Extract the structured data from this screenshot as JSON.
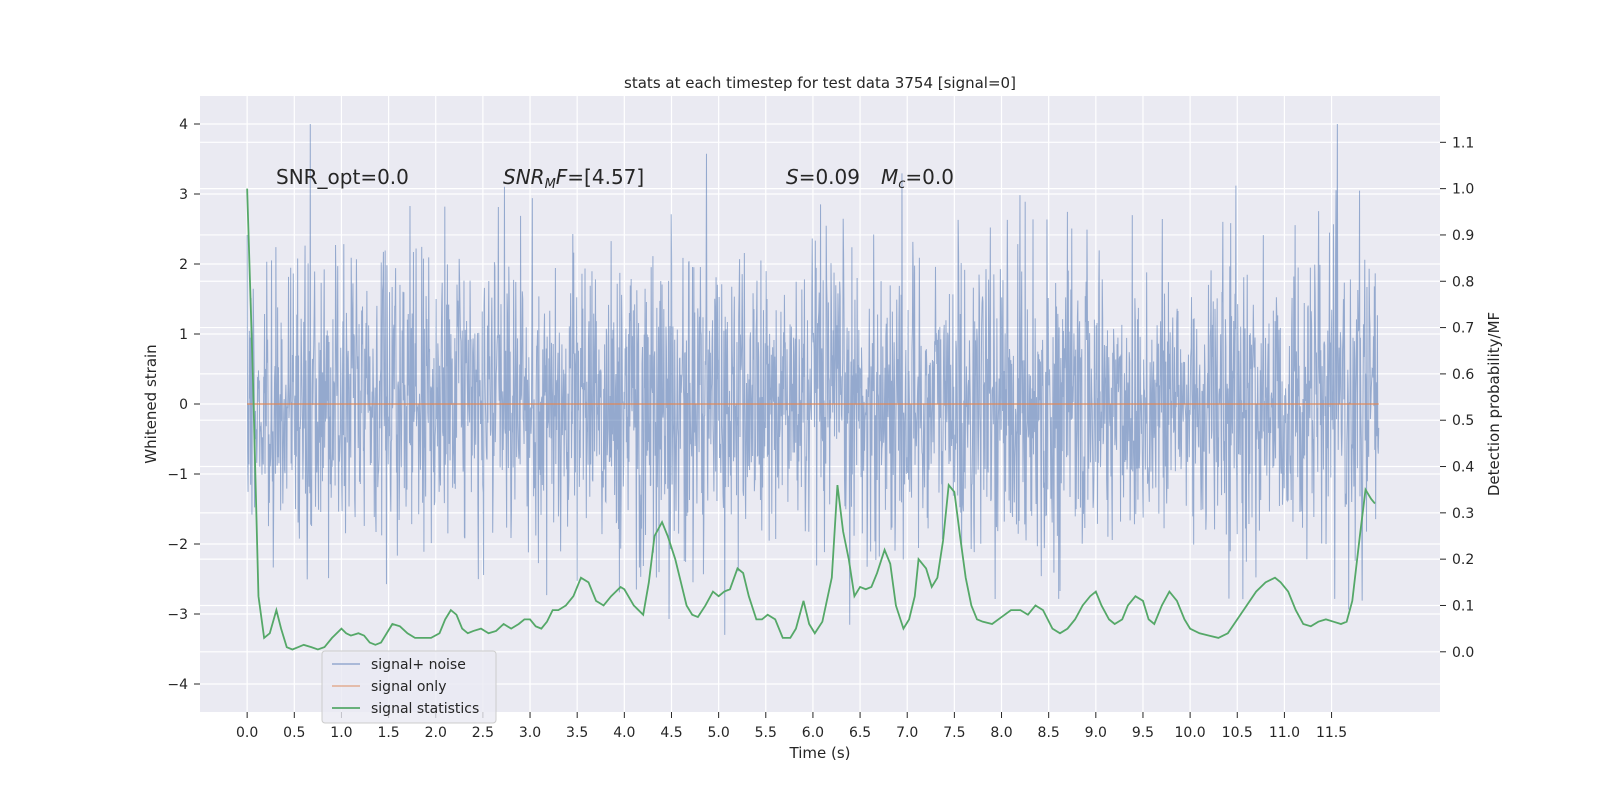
{
  "chart_data": {
    "type": "line",
    "title": "stats at each timestep for test data 3754 [signal=0]",
    "xlabel": "Time (s)",
    "ylabel": "Whitened strain",
    "y2label": "Detection probability/MF",
    "xlim": [
      -0.5,
      12.65
    ],
    "ylim": [
      -4.4,
      4.4
    ],
    "y2lim": [
      -0.13,
      1.2
    ],
    "xticks": [
      "0.0",
      "0.5",
      "1.0",
      "1.5",
      "2.0",
      "2.5",
      "3.0",
      "3.5",
      "4.0",
      "4.5",
      "5.0",
      "5.5",
      "6.0",
      "6.5",
      "7.0",
      "7.5",
      "8.0",
      "8.5",
      "9.0",
      "9.5",
      "10.0",
      "10.5",
      "11.0",
      "11.5"
    ],
    "yticks": [
      "4",
      "3",
      "2",
      "1",
      "0",
      "−1",
      "−2",
      "−3",
      "−4"
    ],
    "y2ticks": [
      "1.1",
      "1.0",
      "0.9",
      "0.8",
      "0.7",
      "0.6",
      "0.5",
      "0.4",
      "0.3",
      "0.2",
      "0.1",
      "0.0"
    ],
    "grid": true,
    "legend_placement": "lower-left",
    "annotations": [
      {
        "id": "snr-opt",
        "text": "SNR_opt=0.0"
      },
      {
        "id": "snr-mf",
        "base": "SNR",
        "sub": "M",
        "rest": "F=[4.57]"
      },
      {
        "id": "s-val",
        "base": "S",
        "rest": "=0.09"
      },
      {
        "id": "mc-val",
        "base": "M",
        "sub": "c",
        "rest": "=0.0"
      }
    ],
    "series": [
      {
        "name": "signal+ noise",
        "color": "#4c72b0",
        "kind": "noise",
        "t_start": 0.0,
        "t_end": 12.0,
        "envelope_approx": [
          -4.1,
          4.0
        ]
      },
      {
        "name": "signal only",
        "color": "#dd8452",
        "kind": "flat",
        "value": 0.0
      },
      {
        "name": "signal statistics",
        "color": "#55a868",
        "axis": "right",
        "x": [
          0.0,
          0.06,
          0.12,
          0.18,
          0.24,
          0.31,
          0.36,
          0.42,
          0.48,
          0.54,
          0.6,
          0.68,
          0.75,
          0.82,
          0.9,
          1.0,
          1.05,
          1.1,
          1.18,
          1.24,
          1.3,
          1.36,
          1.42,
          1.48,
          1.54,
          1.62,
          1.7,
          1.78,
          1.86,
          1.95,
          2.04,
          2.1,
          2.16,
          2.22,
          2.28,
          2.34,
          2.4,
          2.48,
          2.56,
          2.64,
          2.72,
          2.8,
          2.88,
          2.94,
          3.0,
          3.06,
          3.12,
          3.18,
          3.24,
          3.3,
          3.38,
          3.46,
          3.54,
          3.62,
          3.7,
          3.78,
          3.86,
          3.96,
          4.0,
          4.1,
          4.2,
          4.26,
          4.32,
          4.4,
          4.46,
          4.54,
          4.6,
          4.66,
          4.72,
          4.78,
          4.86,
          4.94,
          5.0,
          5.06,
          5.12,
          5.2,
          5.26,
          5.32,
          5.4,
          5.46,
          5.52,
          5.6,
          5.68,
          5.76,
          5.82,
          5.9,
          5.96,
          6.02,
          6.1,
          6.2,
          6.26,
          6.32,
          6.38,
          6.44,
          6.5,
          6.56,
          6.62,
          6.68,
          6.76,
          6.82,
          6.88,
          6.96,
          7.02,
          7.08,
          7.12,
          7.2,
          7.26,
          7.32,
          7.38,
          7.44,
          7.5,
          7.56,
          7.62,
          7.68,
          7.74,
          7.8,
          7.9,
          8.0,
          8.1,
          8.2,
          8.28,
          8.36,
          8.44,
          8.54,
          8.62,
          8.7,
          8.78,
          8.86,
          8.94,
          9.0,
          9.06,
          9.14,
          9.2,
          9.28,
          9.34,
          9.42,
          9.5,
          9.56,
          9.62,
          9.7,
          9.78,
          9.86,
          9.94,
          10.0,
          10.1,
          10.2,
          10.3,
          10.4,
          10.5,
          10.6,
          10.7,
          10.8,
          10.9,
          10.96,
          11.04,
          11.12,
          11.2,
          11.28,
          11.36,
          11.44,
          11.52,
          11.6,
          11.66,
          11.72,
          11.8,
          11.86,
          11.92,
          11.96
        ],
        "y": [
          1.0,
          0.6,
          0.12,
          0.03,
          0.04,
          0.09,
          0.05,
          0.01,
          0.005,
          0.01,
          0.015,
          0.01,
          0.005,
          0.01,
          0.03,
          0.05,
          0.04,
          0.035,
          0.04,
          0.035,
          0.02,
          0.015,
          0.02,
          0.04,
          0.06,
          0.055,
          0.04,
          0.03,
          0.03,
          0.03,
          0.04,
          0.07,
          0.09,
          0.08,
          0.05,
          0.04,
          0.045,
          0.05,
          0.04,
          0.045,
          0.06,
          0.05,
          0.06,
          0.07,
          0.07,
          0.055,
          0.05,
          0.065,
          0.09,
          0.09,
          0.1,
          0.12,
          0.16,
          0.15,
          0.11,
          0.1,
          0.12,
          0.14,
          0.135,
          0.1,
          0.08,
          0.15,
          0.25,
          0.28,
          0.25,
          0.2,
          0.15,
          0.1,
          0.08,
          0.075,
          0.1,
          0.13,
          0.12,
          0.13,
          0.135,
          0.18,
          0.17,
          0.12,
          0.07,
          0.07,
          0.08,
          0.07,
          0.03,
          0.03,
          0.05,
          0.11,
          0.06,
          0.04,
          0.065,
          0.16,
          0.36,
          0.26,
          0.2,
          0.12,
          0.14,
          0.135,
          0.14,
          0.17,
          0.22,
          0.19,
          0.1,
          0.05,
          0.07,
          0.12,
          0.2,
          0.18,
          0.14,
          0.16,
          0.24,
          0.36,
          0.345,
          0.25,
          0.16,
          0.1,
          0.07,
          0.065,
          0.06,
          0.075,
          0.09,
          0.09,
          0.08,
          0.1,
          0.09,
          0.05,
          0.04,
          0.05,
          0.07,
          0.1,
          0.12,
          0.13,
          0.1,
          0.07,
          0.06,
          0.07,
          0.1,
          0.12,
          0.11,
          0.07,
          0.06,
          0.1,
          0.13,
          0.11,
          0.07,
          0.05,
          0.04,
          0.035,
          0.03,
          0.04,
          0.07,
          0.1,
          0.13,
          0.15,
          0.16,
          0.15,
          0.13,
          0.09,
          0.06,
          0.055,
          0.065,
          0.07,
          0.065,
          0.06,
          0.065,
          0.11,
          0.25,
          0.35,
          0.33,
          0.32
        ]
      }
    ]
  }
}
